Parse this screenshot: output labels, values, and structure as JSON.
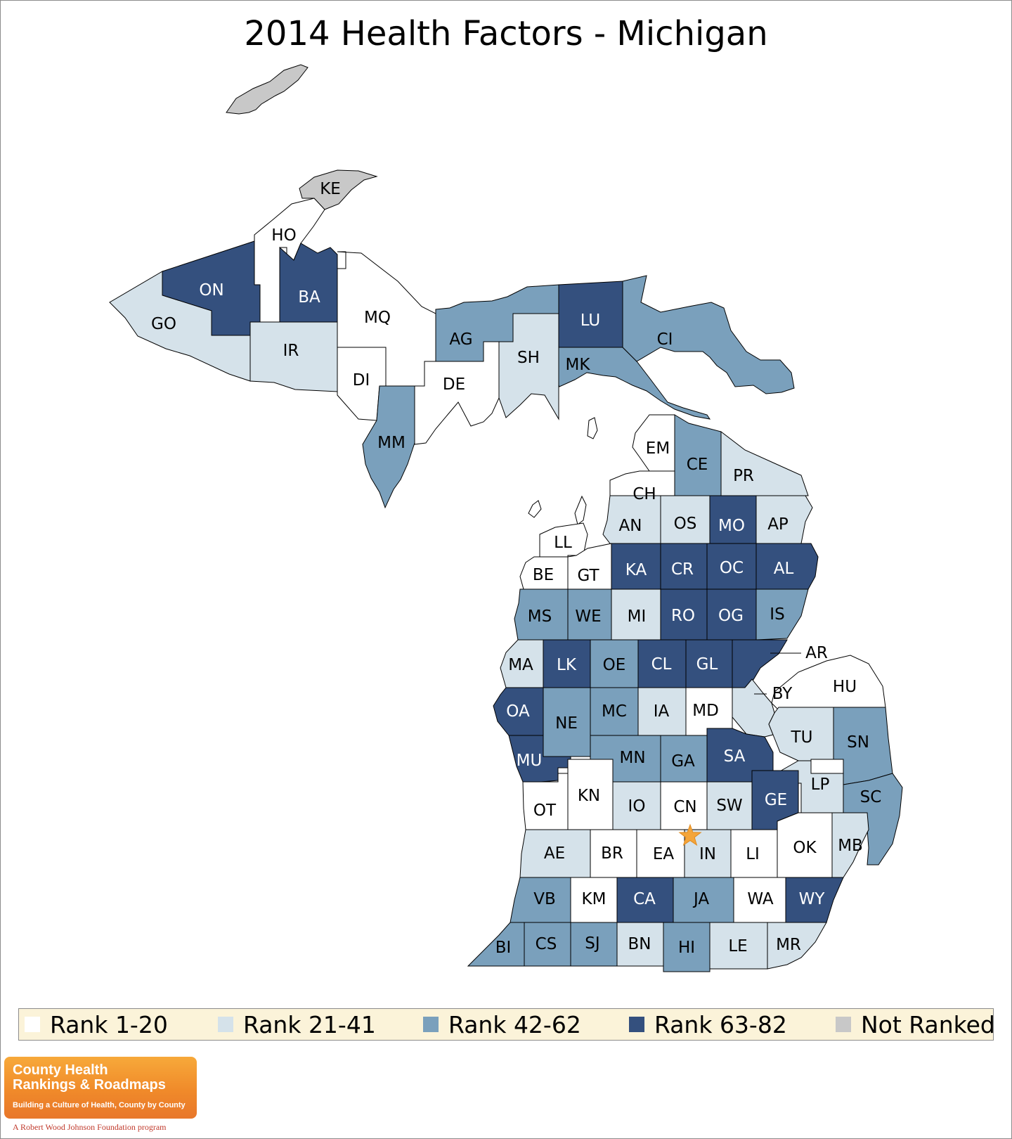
{
  "title": "2014 Health Factors - Michigan",
  "colors": {
    "rank_1_20": "#ffffff",
    "rank_21_41": "#d5e2ea",
    "rank_42_62": "#7aa0bc",
    "rank_63_82": "#34507e",
    "not_ranked": "#c8c8c8",
    "star": "#f4a53a"
  },
  "legend": [
    {
      "label": "Rank 1-20",
      "color": "#ffffff"
    },
    {
      "label": "Rank 21-41",
      "color": "#d5e2ea"
    },
    {
      "label": "Rank 42-62",
      "color": "#7aa0bc"
    },
    {
      "label": "Rank 63-82",
      "color": "#34507e"
    },
    {
      "label": "Not Ranked",
      "color": "#c8c8c8"
    }
  ],
  "counties": [
    {
      "code": "KE",
      "tier": "not_ranked"
    },
    {
      "code": "HO",
      "tier": "rank_1_20"
    },
    {
      "code": "ON",
      "tier": "rank_63_82"
    },
    {
      "code": "GO",
      "tier": "rank_21_41"
    },
    {
      "code": "BA",
      "tier": "rank_63_82"
    },
    {
      "code": "IR",
      "tier": "rank_21_41"
    },
    {
      "code": "MQ",
      "tier": "rank_1_20"
    },
    {
      "code": "DI",
      "tier": "rank_1_20"
    },
    {
      "code": "AG",
      "tier": "rank_42_62"
    },
    {
      "code": "DE",
      "tier": "rank_1_20"
    },
    {
      "code": "MM",
      "tier": "rank_42_62"
    },
    {
      "code": "SH",
      "tier": "rank_21_41"
    },
    {
      "code": "LU",
      "tier": "rank_63_82"
    },
    {
      "code": "MK",
      "tier": "rank_42_62"
    },
    {
      "code": "CI",
      "tier": "rank_42_62"
    },
    {
      "code": "EM",
      "tier": "rank_1_20"
    },
    {
      "code": "CE",
      "tier": "rank_42_62"
    },
    {
      "code": "PR",
      "tier": "rank_21_41"
    },
    {
      "code": "CH",
      "tier": "rank_1_20"
    },
    {
      "code": "AN",
      "tier": "rank_21_41"
    },
    {
      "code": "OS",
      "tier": "rank_21_41"
    },
    {
      "code": "MO",
      "tier": "rank_63_82"
    },
    {
      "code": "AP",
      "tier": "rank_21_41"
    },
    {
      "code": "LL",
      "tier": "rank_1_20"
    },
    {
      "code": "BE",
      "tier": "rank_1_20"
    },
    {
      "code": "GT",
      "tier": "rank_1_20"
    },
    {
      "code": "KA",
      "tier": "rank_63_82"
    },
    {
      "code": "CR",
      "tier": "rank_63_82"
    },
    {
      "code": "OC",
      "tier": "rank_63_82"
    },
    {
      "code": "AL",
      "tier": "rank_63_82"
    },
    {
      "code": "MS",
      "tier": "rank_42_62"
    },
    {
      "code": "WE",
      "tier": "rank_42_62"
    },
    {
      "code": "MI",
      "tier": "rank_21_41"
    },
    {
      "code": "RO",
      "tier": "rank_63_82"
    },
    {
      "code": "OG",
      "tier": "rank_63_82"
    },
    {
      "code": "IS",
      "tier": "rank_42_62"
    },
    {
      "code": "MA",
      "tier": "rank_21_41"
    },
    {
      "code": "LK",
      "tier": "rank_63_82"
    },
    {
      "code": "OE",
      "tier": "rank_42_62"
    },
    {
      "code": "CL",
      "tier": "rank_63_82"
    },
    {
      "code": "GL",
      "tier": "rank_63_82"
    },
    {
      "code": "AR",
      "tier": "rank_63_82"
    },
    {
      "code": "BY",
      "tier": "rank_21_41"
    },
    {
      "code": "HU",
      "tier": "rank_1_20"
    },
    {
      "code": "OA",
      "tier": "rank_63_82"
    },
    {
      "code": "NE",
      "tier": "rank_42_62"
    },
    {
      "code": "MC",
      "tier": "rank_42_62"
    },
    {
      "code": "IA",
      "tier": "rank_21_41"
    },
    {
      "code": "MD",
      "tier": "rank_1_20"
    },
    {
      "code": "TU",
      "tier": "rank_21_41"
    },
    {
      "code": "SN",
      "tier": "rank_42_62"
    },
    {
      "code": "MU",
      "tier": "rank_63_82"
    },
    {
      "code": "MN",
      "tier": "rank_42_62"
    },
    {
      "code": "GA",
      "tier": "rank_42_62"
    },
    {
      "code": "SA",
      "tier": "rank_63_82"
    },
    {
      "code": "LP",
      "tier": "rank_21_41"
    },
    {
      "code": "OT",
      "tier": "rank_1_20"
    },
    {
      "code": "KN",
      "tier": "rank_1_20"
    },
    {
      "code": "IO",
      "tier": "rank_21_41"
    },
    {
      "code": "CN",
      "tier": "rank_1_20"
    },
    {
      "code": "SW",
      "tier": "rank_21_41"
    },
    {
      "code": "GE",
      "tier": "rank_63_82"
    },
    {
      "code": "SC",
      "tier": "rank_42_62"
    },
    {
      "code": "AE",
      "tier": "rank_21_41"
    },
    {
      "code": "BR",
      "tier": "rank_1_20"
    },
    {
      "code": "EA",
      "tier": "rank_1_20"
    },
    {
      "code": "IN",
      "tier": "rank_21_41"
    },
    {
      "code": "LI",
      "tier": "rank_1_20"
    },
    {
      "code": "OK",
      "tier": "rank_1_20"
    },
    {
      "code": "MB",
      "tier": "rank_21_41"
    },
    {
      "code": "VB",
      "tier": "rank_42_62"
    },
    {
      "code": "KM",
      "tier": "rank_1_20"
    },
    {
      "code": "CA",
      "tier": "rank_63_82"
    },
    {
      "code": "JA",
      "tier": "rank_42_62"
    },
    {
      "code": "WA",
      "tier": "rank_1_20"
    },
    {
      "code": "WY",
      "tier": "rank_63_82"
    },
    {
      "code": "BI",
      "tier": "rank_42_62"
    },
    {
      "code": "CS",
      "tier": "rank_42_62"
    },
    {
      "code": "SJ",
      "tier": "rank_42_62"
    },
    {
      "code": "BN",
      "tier": "rank_21_41"
    },
    {
      "code": "HI",
      "tier": "rank_42_62"
    },
    {
      "code": "LE",
      "tier": "rank_21_41"
    },
    {
      "code": "MR",
      "tier": "rank_21_41"
    }
  ],
  "islands": [
    {
      "name": "Isle Royale",
      "tier": "not_ranked"
    }
  ],
  "capital_marker": "star-icon",
  "logo": {
    "line1": "County Health",
    "line2": "Rankings & Roadmaps",
    "tagline": "Building a Culture of Health, County by County",
    "footer": "A Robert Wood Johnson Foundation program"
  }
}
